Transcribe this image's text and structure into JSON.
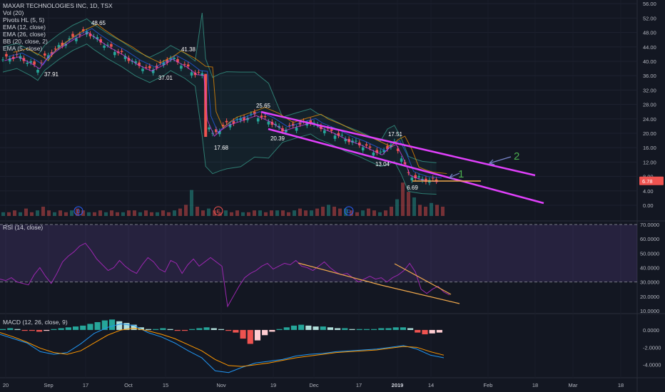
{
  "chart_data": {
    "type": "candlestick",
    "title": "MAXAR TECHNOLOGIES INC, 1D, TSX",
    "legend": [
      "Vol (20)",
      "Pivots HL (5, 5)",
      "EMA (12, close)",
      "EMA (26, close)",
      "BB (20, close, 2)",
      "EMA (5, close)"
    ],
    "price_axis": {
      "ticks": [
        "56.00",
        "52.00",
        "48.00",
        "44.00",
        "40.00",
        "36.00",
        "32.00",
        "28.00",
        "24.00",
        "20.00",
        "16.00",
        "12.00",
        "8.00",
        "4.00",
        "0.00"
      ],
      "ylim": [
        0,
        56
      ],
      "last_price": "6.78"
    },
    "x_ticks": [
      "20",
      "Sep",
      "17",
      "Oct",
      "15",
      "Nov",
      "19",
      "Dec",
      "17",
      "2019",
      "14",
      "Feb",
      "18",
      "Mar",
      "18"
    ],
    "pivot_labels": [
      "48.65",
      "41.38",
      "37.91",
      "37.01",
      "25.65",
      "17.68",
      "20.39",
      "17.51",
      "13.04",
      "6.69"
    ],
    "price_series": [
      {
        "t": 0,
        "v": 40.5
      },
      {
        "t": 4,
        "v": 41.5
      },
      {
        "t": 8,
        "v": 39.5
      },
      {
        "t": 10,
        "v": 38.2
      },
      {
        "t": 12,
        "v": 41.0
      },
      {
        "t": 16,
        "v": 44.0
      },
      {
        "t": 20,
        "v": 46.5
      },
      {
        "t": 24,
        "v": 48.3
      },
      {
        "t": 26,
        "v": 46.8
      },
      {
        "t": 30,
        "v": 44.2
      },
      {
        "t": 34,
        "v": 42.0
      },
      {
        "t": 38,
        "v": 39.4
      },
      {
        "t": 42,
        "v": 37.6
      },
      {
        "t": 46,
        "v": 39.5
      },
      {
        "t": 48,
        "v": 40.9
      },
      {
        "t": 52,
        "v": 38.8
      },
      {
        "t": 55,
        "v": 36.6
      },
      {
        "t": 57,
        "v": 36.4
      },
      {
        "t": 58,
        "v": 24.0
      },
      {
        "t": 60,
        "v": 19.5
      },
      {
        "t": 62,
        "v": 21.2
      },
      {
        "t": 64,
        "v": 22.5
      },
      {
        "t": 68,
        "v": 23.8
      },
      {
        "t": 72,
        "v": 25.2
      },
      {
        "t": 76,
        "v": 23.5
      },
      {
        "t": 80,
        "v": 21.0
      },
      {
        "t": 84,
        "v": 22.2
      },
      {
        "t": 88,
        "v": 23.3
      },
      {
        "t": 90,
        "v": 22.0
      },
      {
        "t": 94,
        "v": 20.4
      },
      {
        "t": 98,
        "v": 18.5
      },
      {
        "t": 102,
        "v": 17.0
      },
      {
        "t": 106,
        "v": 15.2
      },
      {
        "t": 108,
        "v": 14.3
      },
      {
        "t": 110,
        "v": 16.2
      },
      {
        "t": 112,
        "v": 17.2
      },
      {
        "t": 114,
        "v": 13.5
      },
      {
        "t": 116,
        "v": 8.6
      },
      {
        "t": 118,
        "v": 7.8
      },
      {
        "t": 120,
        "v": 7.2
      },
      {
        "t": 122,
        "v": 7.0
      },
      {
        "t": 124,
        "v": 6.8
      }
    ],
    "volume": [
      2,
      2,
      3,
      2,
      4,
      2,
      3,
      5,
      3,
      2,
      3,
      2,
      3,
      4,
      3,
      2,
      2,
      3,
      2,
      3,
      2,
      2,
      3,
      3,
      2,
      3,
      2,
      2,
      3,
      2,
      3,
      4,
      6,
      14,
      5,
      3,
      4,
      3,
      2,
      3,
      2,
      3,
      2,
      2,
      3,
      3,
      2,
      3,
      3,
      3,
      2,
      3,
      4,
      3,
      3,
      4,
      5,
      6,
      5,
      4,
      4,
      3,
      2,
      3,
      4,
      3,
      2,
      3,
      5,
      9,
      18,
      13,
      10,
      6,
      5,
      7,
      6,
      5
    ],
    "rsi": {
      "ticks": [
        "70.0000",
        "60.0000",
        "50.0000",
        "40.0000",
        "30.0000",
        "20.0000",
        "10.0000"
      ],
      "ylim": [
        8,
        72
      ],
      "upper": 70,
      "lower": 30,
      "values": [
        32,
        31,
        33,
        30,
        29,
        28,
        35,
        40,
        34,
        29,
        36,
        44,
        48,
        51,
        55,
        57,
        52,
        46,
        42,
        38,
        40,
        45,
        41,
        38,
        36,
        42,
        47,
        44,
        39,
        37,
        45,
        43,
        36,
        42,
        46,
        41,
        44,
        47,
        44,
        41,
        13,
        20,
        27,
        33,
        36,
        38,
        41,
        43,
        39,
        41,
        43,
        42,
        45,
        41,
        40,
        38,
        41,
        44,
        40,
        37,
        35,
        36,
        33,
        30,
        32,
        34,
        32,
        33,
        30,
        33,
        35,
        38,
        43,
        37,
        25,
        22,
        25,
        27,
        23,
        21
      ]
    },
    "macd": {
      "ticks": [
        "0.0000",
        "-2.0000",
        "-4.0000"
      ],
      "ylim": [
        -5.5,
        1.8
      ],
      "hist": [
        0.1,
        0.2,
        0.1,
        -0.1,
        -0.1,
        -0.2,
        -0.1,
        0.1,
        0.2,
        0.3,
        0.4,
        0.5,
        0.7,
        0.9,
        1.1,
        1.2,
        1.0,
        0.8,
        0.6,
        0.3,
        0.1,
        0.1,
        0.2,
        0.1,
        -0.1,
        -0.1,
        0.1,
        0.2,
        0.3,
        0.2,
        0.1,
        -0.1,
        -0.3,
        -1.0,
        -1.6,
        -1.2,
        -0.6,
        -0.2,
        0.1,
        0.3,
        0.5,
        0.6,
        0.5,
        0.4,
        0.4,
        0.3,
        0.2,
        0.2,
        0.1,
        0.1,
        0.1,
        0.1,
        0.2,
        0.2,
        0.3,
        0.3,
        0.2,
        -0.3,
        -0.5,
        -0.4,
        -0.3
      ],
      "macd_line": [
        -0.5,
        -1.0,
        -1.5,
        -2.5,
        -2.8,
        -2.6,
        -1.6,
        -0.4,
        0.3,
        0.7,
        0.5,
        -0.3,
        -0.8,
        -1.5,
        -2.4,
        -3.2,
        -4.7,
        -4.9,
        -4.3,
        -3.8,
        -3.6,
        -3.4,
        -3.0,
        -2.8,
        -2.7,
        -2.5,
        -2.4,
        -2.3,
        -2.2,
        -2.0,
        -1.8,
        -2.2,
        -2.9,
        -3.2
      ],
      "signal_line": [
        -0.3,
        -0.8,
        -1.4,
        -2.1,
        -2.6,
        -2.8,
        -2.4,
        -1.5,
        -0.6,
        0.0,
        0.2,
        -0.1,
        -0.5,
        -1.0,
        -1.7,
        -2.4,
        -3.4,
        -4.1,
        -4.2,
        -4.0,
        -3.8,
        -3.5,
        -3.2,
        -3.0,
        -2.8,
        -2.6,
        -2.5,
        -2.4,
        -2.3,
        -2.1,
        -1.9,
        -2.0,
        -2.5,
        -2.9
      ]
    }
  },
  "labels": {
    "rsi_pane": "RSI (14, close)",
    "macd_pane": "MACD (12, 26, close, 9)",
    "annotation_1": "1",
    "annotation_2": "2",
    "event_dividend": "D",
    "event_earnings": "E"
  },
  "colors": {
    "bg": "#131722",
    "up": "#26a69a",
    "down": "#ef5350",
    "magenta": "#e040fb",
    "orange": "#f0a84c",
    "rsi": "#9c27b0",
    "green": "#4caf50"
  }
}
